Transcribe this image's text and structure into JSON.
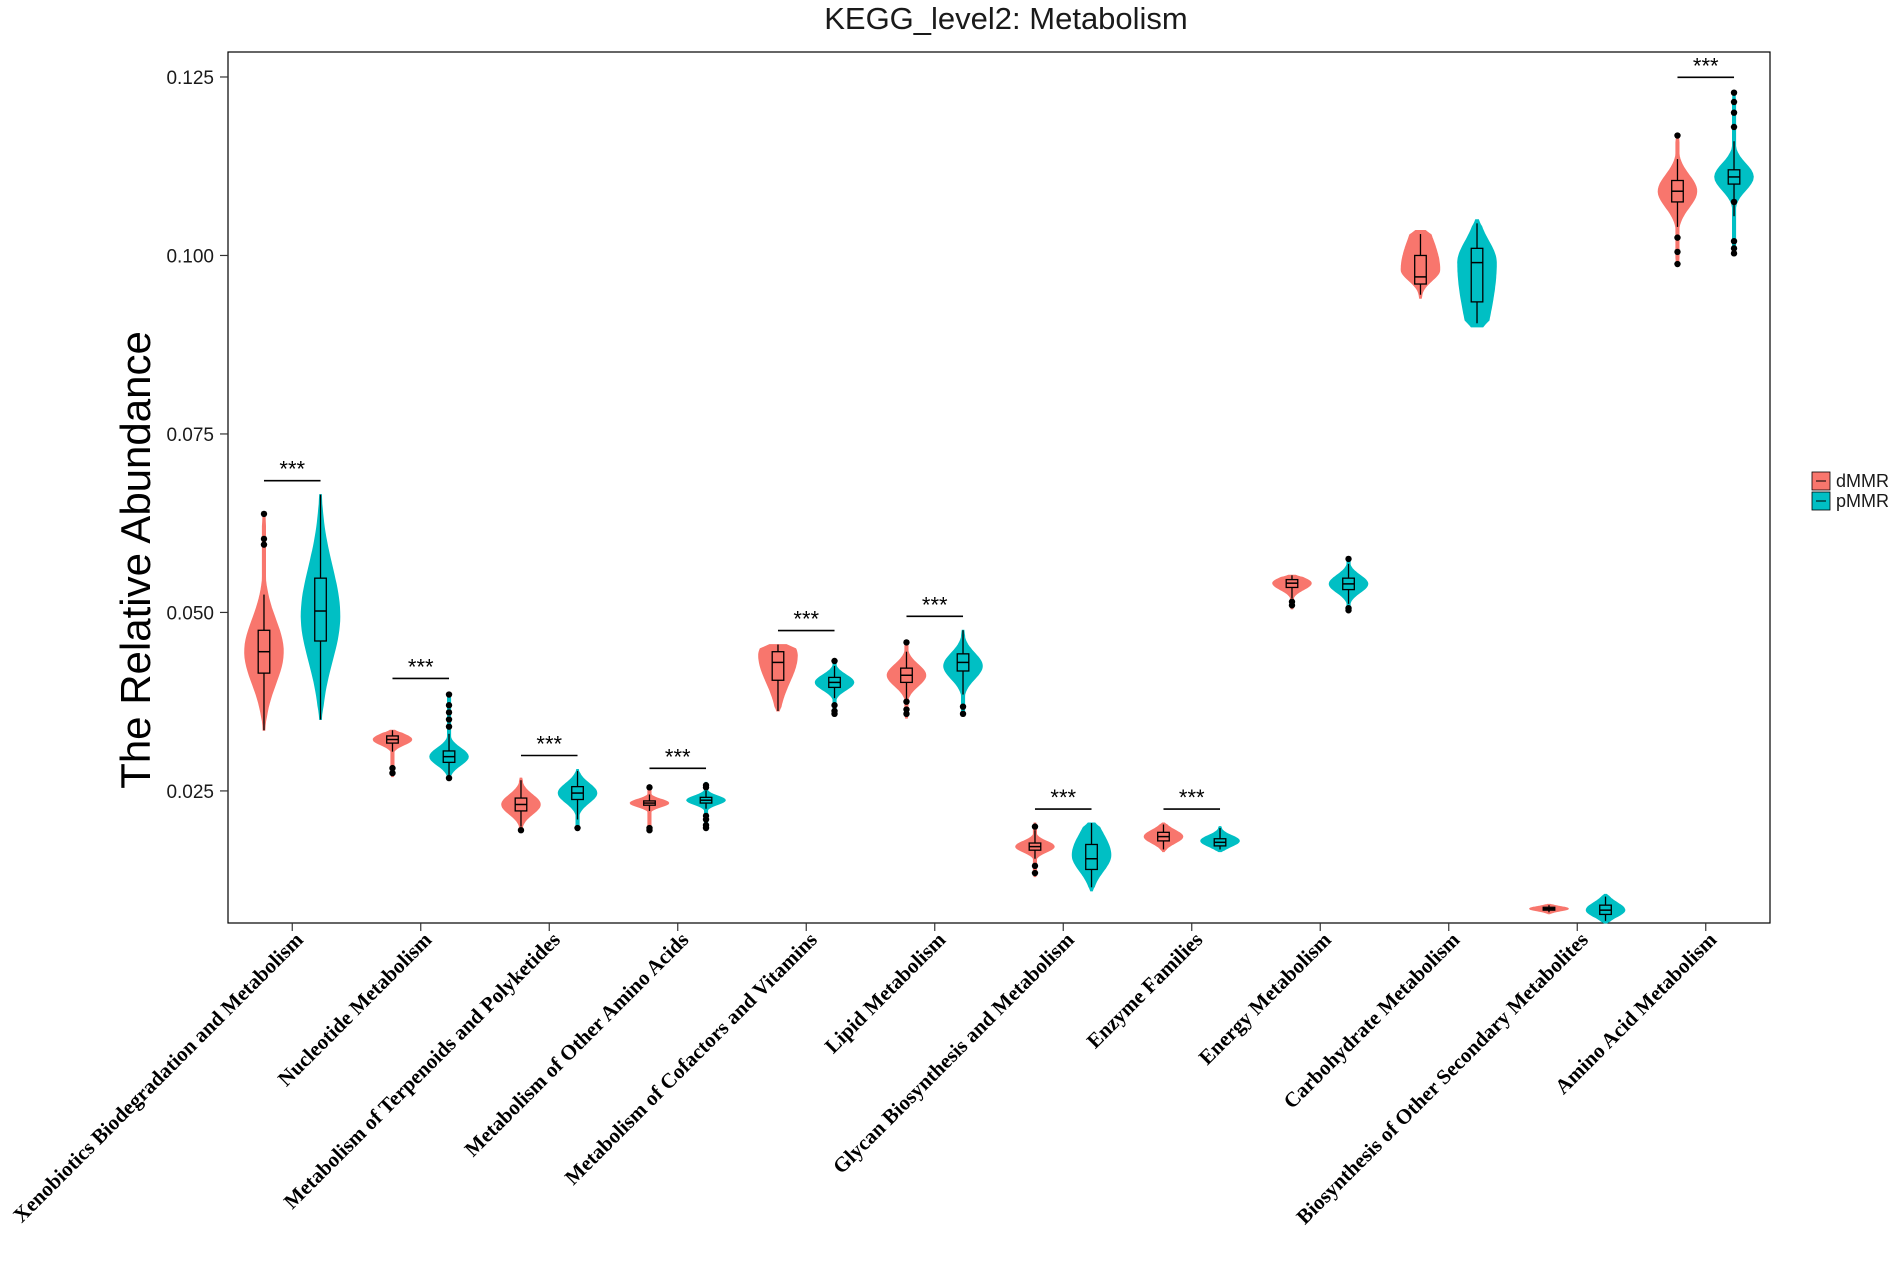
{
  "chart_data": {
    "type": "violin",
    "title": "KEGG_level2: Metabolism",
    "xlabel": "",
    "ylabel": "The Relative Abundance",
    "ylim": [
      0.0065,
      0.1285
    ],
    "yticks": [
      0.025,
      0.05,
      0.075,
      0.1,
      0.125
    ],
    "ytick_labels": [
      "0.025",
      "0.050",
      "0.075",
      "0.100",
      "0.125"
    ],
    "grid": false,
    "legend": {
      "position": "right",
      "entries": [
        {
          "name": "dMMR",
          "color": "#F8766D"
        },
        {
          "name": "pMMR",
          "color": "#00BFC4"
        }
      ]
    },
    "categories": [
      "Xenobiotics Biodegradation and Metabolism",
      "Nucleotide Metabolism",
      "Metabolism of Terpenoids and Polyketides",
      "Metabolism of Other Amino Acids",
      "Metabolism of Cofactors and Vitamins",
      "Lipid Metabolism",
      "Glycan Biosynthesis and Metabolism",
      "Enzyme Families",
      "Energy Metabolism",
      "Carbohydrate Metabolism",
      "Biosynthesis of Other Secondary Metabolites",
      "Amino Acid Metabolism"
    ],
    "significance": [
      "***",
      "***",
      "***",
      "***",
      "***",
      "***",
      "***",
      "***",
      "",
      "",
      "",
      "***"
    ],
    "series": [
      {
        "name": "dMMR",
        "color": "#F8766D",
        "groups": [
          {
            "min": 0.0335,
            "q1": 0.0415,
            "median": 0.0445,
            "q3": 0.0475,
            "max": 0.064,
            "wlo": 0.0335,
            "whi": 0.0525,
            "outliers": [
              0.0638,
              0.0603,
              0.0595
            ],
            "width": 0.75,
            "mode": 0.0445
          },
          {
            "min": 0.027,
            "q1": 0.0317,
            "median": 0.0322,
            "q3": 0.0327,
            "max": 0.0335,
            "wlo": 0.0305,
            "whi": 0.0335,
            "outliers": [
              0.0275,
              0.0282
            ],
            "width": 0.75,
            "mode": 0.0322
          },
          {
            "min": 0.0192,
            "q1": 0.0222,
            "median": 0.0231,
            "q3": 0.024,
            "max": 0.0268,
            "wlo": 0.02,
            "whi": 0.0265,
            "outliers": [
              0.0195
            ],
            "width": 0.75,
            "mode": 0.0231
          },
          {
            "min": 0.0192,
            "q1": 0.023,
            "median": 0.0233,
            "q3": 0.0236,
            "max": 0.0258,
            "wlo": 0.0222,
            "whi": 0.0245,
            "outliers": [
              0.0195,
              0.0198,
              0.0255
            ],
            "width": 0.75,
            "mode": 0.0233
          },
          {
            "min": 0.0362,
            "q1": 0.0405,
            "median": 0.043,
            "q3": 0.0445,
            "max": 0.0455,
            "wlo": 0.0362,
            "whi": 0.0455,
            "outliers": [],
            "width": 0.75,
            "mode": 0.044
          },
          {
            "min": 0.0352,
            "q1": 0.0402,
            "median": 0.0412,
            "q3": 0.0422,
            "max": 0.046,
            "wlo": 0.0372,
            "whi": 0.0445,
            "outliers": [
              0.0358,
              0.0364,
              0.0375,
              0.0458
            ],
            "width": 0.75,
            "mode": 0.0412
          },
          {
            "min": 0.013,
            "q1": 0.0167,
            "median": 0.0172,
            "q3": 0.0177,
            "max": 0.0205,
            "wlo": 0.0155,
            "whi": 0.0195,
            "outliers": [
              0.0135,
              0.0145,
              0.02
            ],
            "width": 0.75,
            "mode": 0.0172
          },
          {
            "min": 0.0165,
            "q1": 0.018,
            "median": 0.0186,
            "q3": 0.0192,
            "max": 0.0205,
            "wlo": 0.0168,
            "whi": 0.0203,
            "outliers": [],
            "width": 0.75,
            "mode": 0.0186
          },
          {
            "min": 0.0505,
            "q1": 0.0535,
            "median": 0.0541,
            "q3": 0.0546,
            "max": 0.0552,
            "wlo": 0.052,
            "whi": 0.0552,
            "outliers": [
              0.051,
              0.0515
            ],
            "width": 0.75,
            "mode": 0.0541
          },
          {
            "min": 0.094,
            "q1": 0.096,
            "median": 0.097,
            "q3": 0.1,
            "max": 0.1035,
            "wlo": 0.0945,
            "whi": 0.103,
            "outliers": [],
            "width": 0.75,
            "mode": 0.098
          },
          {
            "min": 0.0078,
            "q1": 0.0083,
            "median": 0.0085,
            "q3": 0.0087,
            "max": 0.0091,
            "wlo": 0.008,
            "whi": 0.009,
            "outliers": [],
            "width": 0.75,
            "mode": 0.0085
          },
          {
            "min": 0.0985,
            "q1": 0.1075,
            "median": 0.109,
            "q3": 0.1105,
            "max": 0.117,
            "wlo": 0.104,
            "whi": 0.1135,
            "outliers": [
              0.0988,
              0.1005,
              0.1025,
              0.1168
            ],
            "width": 0.75,
            "mode": 0.109
          }
        ]
      },
      {
        "name": "pMMR",
        "color": "#00BFC4",
        "groups": [
          {
            "min": 0.035,
            "q1": 0.046,
            "median": 0.0502,
            "q3": 0.0548,
            "max": 0.0665,
            "wlo": 0.035,
            "whi": 0.0665,
            "outliers": [],
            "width": 0.75,
            "mode": 0.0495
          },
          {
            "min": 0.0265,
            "q1": 0.029,
            "median": 0.0298,
            "q3": 0.0306,
            "max": 0.0388,
            "wlo": 0.0272,
            "whi": 0.033,
            "outliers": [
              0.0268,
              0.034,
              0.035,
              0.036,
              0.037,
              0.0385
            ],
            "width": 0.75,
            "mode": 0.0298
          },
          {
            "min": 0.0195,
            "q1": 0.0238,
            "median": 0.0247,
            "q3": 0.0256,
            "max": 0.028,
            "wlo": 0.021,
            "whi": 0.0278,
            "outliers": [
              0.0198
            ],
            "width": 0.75,
            "mode": 0.0247
          },
          {
            "min": 0.0195,
            "q1": 0.0233,
            "median": 0.0237,
            "q3": 0.0241,
            "max": 0.0262,
            "wlo": 0.0225,
            "whi": 0.025,
            "outliers": [
              0.0198,
              0.0202,
              0.021,
              0.0215,
              0.0255,
              0.0258
            ],
            "width": 0.75,
            "mode": 0.0237
          },
          {
            "min": 0.0355,
            "q1": 0.0395,
            "median": 0.0402,
            "q3": 0.0409,
            "max": 0.0435,
            "wlo": 0.038,
            "whi": 0.0425,
            "outliers": [
              0.0358,
              0.0362,
              0.037,
              0.0432
            ],
            "width": 0.75,
            "mode": 0.0402
          },
          {
            "min": 0.0355,
            "q1": 0.0418,
            "median": 0.043,
            "q3": 0.0442,
            "max": 0.0475,
            "wlo": 0.0385,
            "whi": 0.0475,
            "outliers": [
              0.0358,
              0.0368
            ],
            "width": 0.75,
            "mode": 0.0425
          },
          {
            "min": 0.011,
            "q1": 0.014,
            "median": 0.0155,
            "q3": 0.0175,
            "max": 0.0205,
            "wlo": 0.0115,
            "whi": 0.0205,
            "outliers": [],
            "width": 0.75,
            "mode": 0.016
          },
          {
            "min": 0.0165,
            "q1": 0.0173,
            "median": 0.0178,
            "q3": 0.0183,
            "max": 0.02,
            "wlo": 0.0168,
            "whi": 0.0198,
            "outliers": [],
            "width": 0.75,
            "mode": 0.018
          },
          {
            "min": 0.05,
            "q1": 0.0532,
            "median": 0.054,
            "q3": 0.0548,
            "max": 0.0578,
            "wlo": 0.0512,
            "whi": 0.0568,
            "outliers": [
              0.0503,
              0.0506,
              0.0575
            ],
            "width": 0.75,
            "mode": 0.054
          },
          {
            "min": 0.09,
            "q1": 0.0935,
            "median": 0.099,
            "q3": 0.101,
            "max": 0.105,
            "wlo": 0.0905,
            "whi": 0.1045,
            "outliers": [],
            "width": 0.75,
            "mode": 0.099
          },
          {
            "min": 0.0065,
            "q1": 0.0077,
            "median": 0.0083,
            "q3": 0.009,
            "max": 0.0105,
            "wlo": 0.0068,
            "whi": 0.0102,
            "outliers": [],
            "width": 0.75,
            "mode": 0.0083
          },
          {
            "min": 0.1,
            "q1": 0.11,
            "median": 0.111,
            "q3": 0.112,
            "max": 0.123,
            "wlo": 0.1055,
            "whi": 0.116,
            "outliers": [
              0.1003,
              0.101,
              0.102,
              0.1075,
              0.118,
              0.12,
              0.1215,
              0.1228
            ],
            "width": 0.75,
            "mode": 0.111
          }
        ]
      }
    ]
  }
}
